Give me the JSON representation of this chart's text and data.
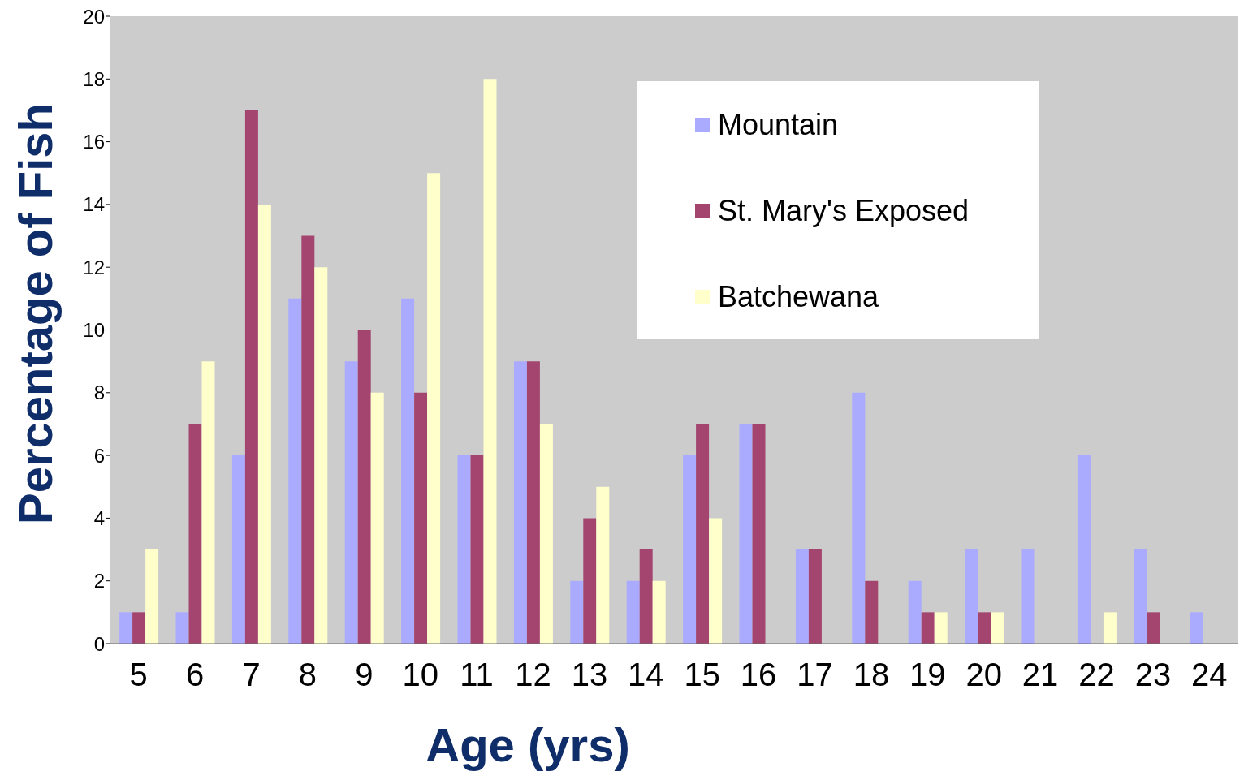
{
  "chart_data": {
    "type": "bar",
    "xlabel": "Age (yrs)",
    "ylabel": "Percentage of Fish",
    "categories": [
      "5",
      "6",
      "7",
      "8",
      "9",
      "10",
      "11",
      "12",
      "13",
      "14",
      "15",
      "16",
      "17",
      "18",
      "19",
      "20",
      "21",
      "22",
      "23",
      "24"
    ],
    "series": [
      {
        "name": "Mountain",
        "color": "#aaaaff",
        "values": [
          1,
          1,
          6,
          11,
          9,
          11,
          6,
          9,
          2,
          2,
          6,
          7,
          3,
          8,
          2,
          3,
          3,
          6,
          3,
          1
        ]
      },
      {
        "name": "St. Mary's Exposed",
        "color": "#a3456f",
        "values": [
          1,
          7,
          17,
          13,
          10,
          8,
          6,
          9,
          4,
          3,
          7,
          7,
          3,
          2,
          1,
          1,
          0,
          0,
          1,
          0
        ]
      },
      {
        "name": "Batchewana",
        "color": "#ffffcc",
        "values": [
          3,
          9,
          14,
          12,
          8,
          15,
          18,
          7,
          5,
          2,
          4,
          0,
          0,
          0,
          1,
          1,
          0,
          1,
          0,
          0
        ]
      }
    ],
    "ylim": [
      0,
      20
    ],
    "yticks": [
      0,
      2,
      4,
      6,
      8,
      10,
      12,
      14,
      16,
      18,
      20
    ],
    "grid": false,
    "legend": "top right"
  }
}
